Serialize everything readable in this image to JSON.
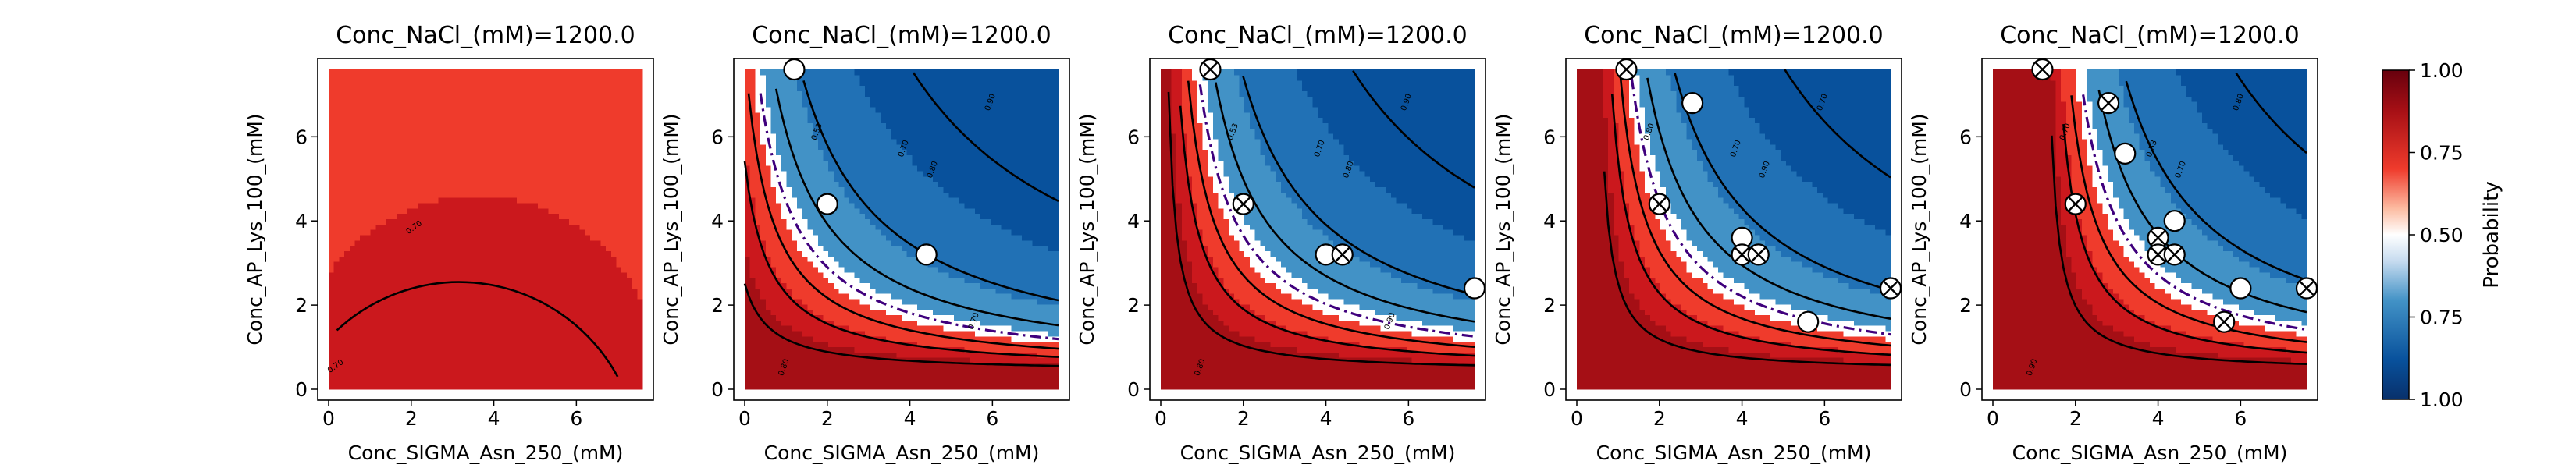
{
  "colors": {
    "deep_red": "#a50f15",
    "red": "#cb181d",
    "light_red": "#ef3b2c",
    "white": "#ffffff",
    "light_blue": "#4292c6",
    "blue": "#2171b5",
    "deep_blue": "#08519c",
    "contour_line": "#000000",
    "boundary_line": "#3f007d"
  },
  "colorbar": {
    "label": "Probability",
    "ticks": [
      "1.00",
      "0.75",
      "0.50",
      "0.75",
      "1.00"
    ]
  },
  "chart_data": [
    {
      "type": "contour",
      "title": "Conc_NaCl_(mM)=1200.0",
      "xlabel": "Conc_SIGMA_Asn_250_(mM)",
      "ylabel": "Conc_AP_Lys_100_(mM)",
      "xlim": [
        0,
        7.6
      ],
      "ylim": [
        0,
        7.6
      ],
      "xticks": [
        "0",
        "2",
        "4",
        "6"
      ],
      "yticks": [
        "0",
        "2",
        "4",
        "6"
      ],
      "contour_labels": [
        "0.70",
        "0.70"
      ],
      "points": []
    },
    {
      "type": "contour",
      "title": "Conc_NaCl_(mM)=1200.0",
      "xlabel": "Conc_SIGMA_Asn_250_(mM)",
      "ylabel": "Conc_AP_Lys_100_(mM)",
      "xlim": [
        0,
        7.6
      ],
      "ylim": [
        0,
        7.6
      ],
      "xticks": [
        "0",
        "2",
        "4",
        "6"
      ],
      "yticks": [
        "0",
        "2",
        "4",
        "6"
      ],
      "contour_labels": [
        "0.90",
        "0.80",
        "0.70",
        "0.53",
        "0.70",
        "0.80"
      ],
      "points": [
        {
          "x": 1.2,
          "y": 7.6,
          "marker": "open"
        },
        {
          "x": 2.0,
          "y": 4.4,
          "marker": "open"
        },
        {
          "x": 4.4,
          "y": 3.2,
          "marker": "open"
        }
      ]
    },
    {
      "type": "contour",
      "title": "Conc_NaCl_(mM)=1200.0",
      "xlabel": "Conc_SIGMA_Asn_250_(mM)",
      "ylabel": "Conc_AP_Lys_100_(mM)",
      "xlim": [
        0,
        7.6
      ],
      "ylim": [
        0,
        7.6
      ],
      "xticks": [
        "0",
        "2",
        "4",
        "6"
      ],
      "yticks": [
        "0",
        "2",
        "4",
        "6"
      ],
      "contour_labels": [
        "0.90",
        "0.80",
        "0.70",
        "0.53",
        "0.90",
        "0.80"
      ],
      "points": [
        {
          "x": 1.2,
          "y": 7.6,
          "marker": "cross"
        },
        {
          "x": 2.0,
          "y": 4.4,
          "marker": "cross"
        },
        {
          "x": 4.0,
          "y": 3.2,
          "marker": "open"
        },
        {
          "x": 4.4,
          "y": 3.2,
          "marker": "cross"
        },
        {
          "x": 7.6,
          "y": 2.4,
          "marker": "open"
        }
      ]
    },
    {
      "type": "contour",
      "title": "Conc_NaCl_(mM)=1200.0",
      "xlabel": "Conc_SIGMA_Asn_250_(mM)",
      "ylabel": "Conc_AP_Lys_100_(mM)",
      "xlim": [
        0,
        7.6
      ],
      "ylim": [
        0,
        7.6
      ],
      "xticks": [
        "0",
        "2",
        "4",
        "6"
      ],
      "yticks": [
        "0",
        "2",
        "4",
        "6"
      ],
      "contour_labels": [
        "0.70",
        "0.90",
        "0.70",
        "0.80",
        "0.90"
      ],
      "points": [
        {
          "x": 1.2,
          "y": 7.6,
          "marker": "cross"
        },
        {
          "x": 2.0,
          "y": 4.4,
          "marker": "cross"
        },
        {
          "x": 2.8,
          "y": 6.8,
          "marker": "open"
        },
        {
          "x": 4.0,
          "y": 3.6,
          "marker": "open"
        },
        {
          "x": 4.0,
          "y": 3.2,
          "marker": "cross"
        },
        {
          "x": 4.4,
          "y": 3.2,
          "marker": "cross"
        },
        {
          "x": 5.6,
          "y": 1.6,
          "marker": "open"
        },
        {
          "x": 7.6,
          "y": 2.4,
          "marker": "cross"
        }
      ]
    },
    {
      "type": "contour",
      "title": "Conc_NaCl_(mM)=1200.0",
      "xlabel": "Conc_SIGMA_Asn_250_(mM)",
      "ylabel": "Conc_AP_Lys_100_(mM)",
      "xlim": [
        0,
        7.6
      ],
      "ylim": [
        0,
        7.6
      ],
      "xticks": [
        "0",
        "2",
        "4",
        "6"
      ],
      "yticks": [
        "0",
        "2",
        "4",
        "6"
      ],
      "contour_labels": [
        "0.80",
        "0.70",
        "0.53",
        "0.70",
        "0.80",
        "0.90"
      ],
      "points": [
        {
          "x": 1.2,
          "y": 7.6,
          "marker": "cross"
        },
        {
          "x": 2.0,
          "y": 4.4,
          "marker": "cross"
        },
        {
          "x": 2.8,
          "y": 6.8,
          "marker": "cross"
        },
        {
          "x": 3.2,
          "y": 5.6,
          "marker": "open"
        },
        {
          "x": 4.0,
          "y": 3.6,
          "marker": "cross"
        },
        {
          "x": 4.0,
          "y": 3.2,
          "marker": "cross"
        },
        {
          "x": 4.4,
          "y": 4.0,
          "marker": "open"
        },
        {
          "x": 4.4,
          "y": 3.2,
          "marker": "cross"
        },
        {
          "x": 5.6,
          "y": 1.6,
          "marker": "cross"
        },
        {
          "x": 6.0,
          "y": 2.4,
          "marker": "open"
        },
        {
          "x": 7.6,
          "y": 2.4,
          "marker": "cross"
        }
      ]
    }
  ]
}
